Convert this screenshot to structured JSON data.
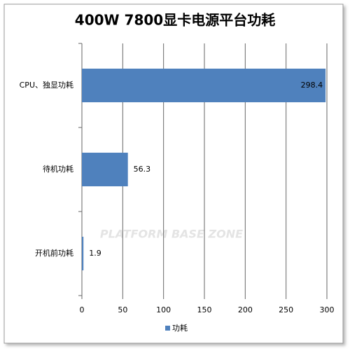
{
  "chart_data": {
    "type": "hbar",
    "title": "400W 7800显卡电源平台功耗",
    "categories": [
      "CPU、独显功耗",
      "待机功耗",
      "开机前功耗"
    ],
    "series": [
      {
        "name": "功耗",
        "color": "#4f81bd",
        "values": [
          298.4,
          56.3,
          1.9
        ]
      }
    ],
    "xlim": [
      0,
      300
    ],
    "xticks": [
      0,
      50,
      100,
      150,
      200,
      250,
      300
    ],
    "grid": true,
    "legend": "bottom",
    "watermark": "PLATFORM BASE ZONE"
  }
}
